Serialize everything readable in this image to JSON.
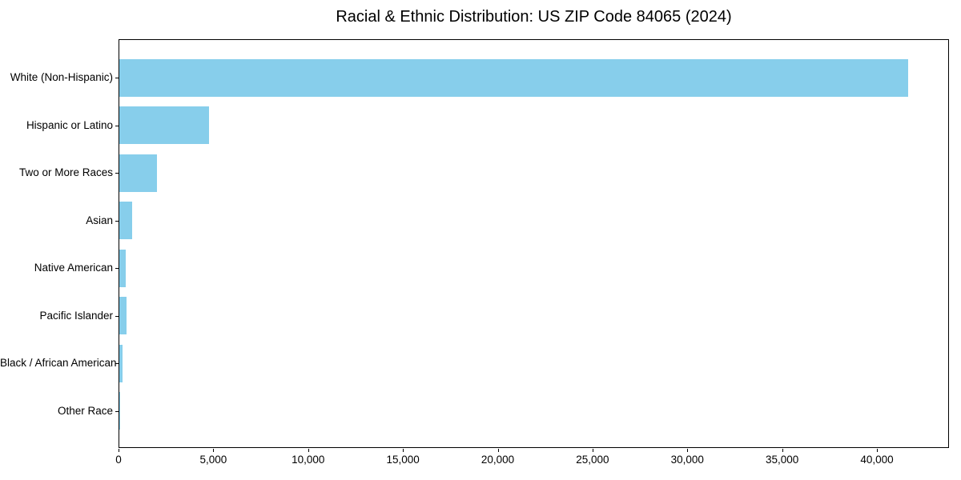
{
  "chart_data": {
    "type": "bar",
    "orientation": "horizontal",
    "title": "Racial & Ethnic Distribution: US ZIP Code 84065 (2024)",
    "categories": [
      "White (Non-Hispanic)",
      "Hispanic or Latino",
      "Two or More Races",
      "Asian",
      "Native American",
      "Pacific Islander",
      "Black / African American",
      "Other Race"
    ],
    "values": [
      41700,
      4760,
      2010,
      680,
      350,
      380,
      170,
      60
    ],
    "xlabel": "",
    "ylabel": "",
    "xlim": [
      0,
      43800
    ],
    "x_ticks": [
      0,
      5000,
      10000,
      15000,
      20000,
      25000,
      30000,
      35000,
      40000
    ],
    "x_tick_labels": [
      "0",
      "5,000",
      "10,000",
      "15,000",
      "20,000",
      "25,000",
      "30,000",
      "35,000",
      "40,000"
    ],
    "bar_color": "#87CEEB",
    "axis_color": "#000000",
    "background_color": "#ffffff",
    "grid": false,
    "legend": null
  }
}
